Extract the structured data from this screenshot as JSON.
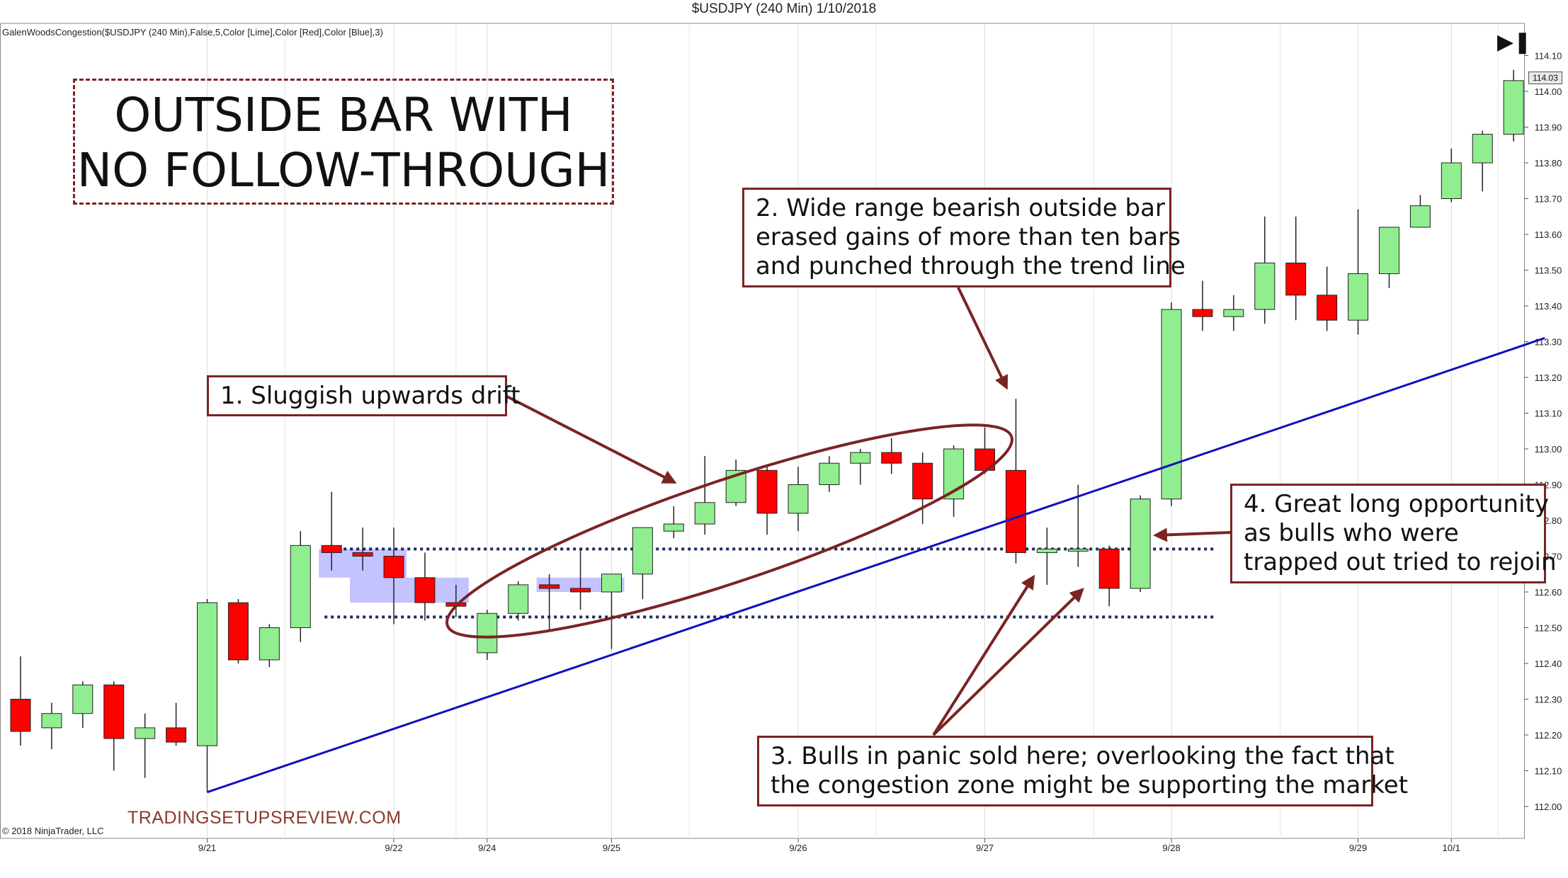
{
  "header": {
    "title": "$USDJPY (240 Min)  1/10/2018"
  },
  "indicator_label": "GalenWoodsCongestion($USDJPY (240 Min),False,5,Color [Lime],Color [Red],Color [Blue],3)",
  "copyright": "© 2018 NinjaTrader, LLC",
  "watermark": "TRADINGSETUPSREVIEW.COM",
  "play_icon": "skip-to-end-icon",
  "last_price": "114.03",
  "title_lines": [
    "OUTSIDE BAR WITH",
    "NO FOLLOW-THROUGH"
  ],
  "annotations": [
    {
      "id": "a1",
      "lines": [
        "1. Sluggish upwards drift"
      ]
    },
    {
      "id": "a2",
      "lines": [
        "2. Wide range bearish outside bar",
        "erased gains of more than ten bars",
        "and punched through the trend line"
      ]
    },
    {
      "id": "a3",
      "lines": [
        "3. Bulls in panic sold here; overlooking the fact that",
        "the congestion zone might be supporting the market"
      ]
    },
    {
      "id": "a4",
      "lines": [
        "4. Great long opportunity",
        "as bulls who were",
        "trapped out tried to rejoin"
      ]
    }
  ],
  "colors": {
    "bull": "#90ee90",
    "bear": "#ff0000",
    "trendline": "#1010c0",
    "annotation": "#7a2424",
    "zone": "#7b7bff",
    "levels": "#1a2a5a"
  },
  "chart_data": {
    "type": "candlestick",
    "title": "$USDJPY (240 Min)  1/10/2018",
    "ylim": [
      111.95,
      114.15
    ],
    "y_ticks": [
      "112.00",
      "112.10",
      "112.20",
      "112.30",
      "112.40",
      "112.50",
      "112.60",
      "112.70",
      "112.80",
      "112.90",
      "113.00",
      "113.10",
      "113.20",
      "113.30",
      "113.40",
      "113.50",
      "113.60",
      "113.70",
      "113.80",
      "113.90",
      "114.00",
      "114.10"
    ],
    "x_ticks": [
      {
        "label": "9/21",
        "bar": 6
      },
      {
        "label": "9/22",
        "bar": 12
      },
      {
        "label": "9/24",
        "bar": 15
      },
      {
        "label": "9/25",
        "bar": 19
      },
      {
        "label": "9/26",
        "bar": 25
      },
      {
        "label": "9/27",
        "bar": 31
      },
      {
        "label": "9/28",
        "bar": 37
      },
      {
        "label": "9/29",
        "bar": 43
      },
      {
        "label": "10/1",
        "bar": 46
      }
    ],
    "candles": [
      {
        "o": 112.3,
        "h": 112.42,
        "l": 112.17,
        "c": 112.21
      },
      {
        "o": 112.22,
        "h": 112.29,
        "l": 112.16,
        "c": 112.26
      },
      {
        "o": 112.26,
        "h": 112.35,
        "l": 112.22,
        "c": 112.34
      },
      {
        "o": 112.34,
        "h": 112.35,
        "l": 112.1,
        "c": 112.19
      },
      {
        "o": 112.19,
        "h": 112.26,
        "l": 112.08,
        "c": 112.22
      },
      {
        "o": 112.22,
        "h": 112.29,
        "l": 112.17,
        "c": 112.18
      },
      {
        "o": 112.17,
        "h": 112.58,
        "l": 112.04,
        "c": 112.57
      },
      {
        "o": 112.57,
        "h": 112.58,
        "l": 112.4,
        "c": 112.41
      },
      {
        "o": 112.41,
        "h": 112.51,
        "l": 112.39,
        "c": 112.5
      },
      {
        "o": 112.5,
        "h": 112.77,
        "l": 112.46,
        "c": 112.73
      },
      {
        "o": 112.73,
        "h": 112.88,
        "l": 112.66,
        "c": 112.71
      },
      {
        "o": 112.71,
        "h": 112.78,
        "l": 112.66,
        "c": 112.7
      },
      {
        "o": 112.7,
        "h": 112.78,
        "l": 112.51,
        "c": 112.64
      },
      {
        "o": 112.64,
        "h": 112.71,
        "l": 112.52,
        "c": 112.57
      },
      {
        "o": 112.57,
        "h": 112.62,
        "l": 112.53,
        "c": 112.56
      },
      {
        "o": 112.43,
        "h": 112.55,
        "l": 112.41,
        "c": 112.54
      },
      {
        "o": 112.54,
        "h": 112.63,
        "l": 112.52,
        "c": 112.62
      },
      {
        "o": 112.62,
        "h": 112.65,
        "l": 112.49,
        "c": 112.61
      },
      {
        "o": 112.61,
        "h": 112.72,
        "l": 112.55,
        "c": 112.6
      },
      {
        "o": 112.6,
        "h": 112.63,
        "l": 112.44,
        "c": 112.65
      },
      {
        "o": 112.65,
        "h": 112.78,
        "l": 112.58,
        "c": 112.78
      },
      {
        "o": 112.77,
        "h": 112.84,
        "l": 112.75,
        "c": 112.79
      },
      {
        "o": 112.79,
        "h": 112.98,
        "l": 112.76,
        "c": 112.85
      },
      {
        "o": 112.85,
        "h": 112.97,
        "l": 112.84,
        "c": 112.94
      },
      {
        "o": 112.94,
        "h": 112.95,
        "l": 112.76,
        "c": 112.82
      },
      {
        "o": 112.82,
        "h": 112.95,
        "l": 112.77,
        "c": 112.9
      },
      {
        "o": 112.9,
        "h": 112.98,
        "l": 112.88,
        "c": 112.96
      },
      {
        "o": 112.96,
        "h": 113.0,
        "l": 112.9,
        "c": 112.99
      },
      {
        "o": 112.99,
        "h": 113.03,
        "l": 112.93,
        "c": 112.96
      },
      {
        "o": 112.96,
        "h": 112.99,
        "l": 112.79,
        "c": 112.86
      },
      {
        "o": 112.86,
        "h": 113.01,
        "l": 112.81,
        "c": 113.0
      },
      {
        "o": 113.0,
        "h": 113.06,
        "l": 112.93,
        "c": 112.94
      },
      {
        "o": 112.94,
        "h": 113.14,
        "l": 112.68,
        "c": 112.71
      },
      {
        "o": 112.71,
        "h": 112.78,
        "l": 112.62,
        "c": 112.72
      },
      {
        "o": 112.72,
        "h": 112.9,
        "l": 112.67,
        "c": 112.72
      },
      {
        "o": 112.72,
        "h": 112.73,
        "l": 112.56,
        "c": 112.61
      },
      {
        "o": 112.61,
        "h": 112.87,
        "l": 112.6,
        "c": 112.86
      },
      {
        "o": 112.86,
        "h": 113.41,
        "l": 112.84,
        "c": 113.39
      },
      {
        "o": 113.39,
        "h": 113.47,
        "l": 113.33,
        "c": 113.37
      },
      {
        "o": 113.37,
        "h": 113.43,
        "l": 113.33,
        "c": 113.39
      },
      {
        "o": 113.39,
        "h": 113.65,
        "l": 113.35,
        "c": 113.52
      },
      {
        "o": 113.52,
        "h": 113.65,
        "l": 113.36,
        "c": 113.43
      },
      {
        "o": 113.43,
        "h": 113.51,
        "l": 113.33,
        "c": 113.36
      },
      {
        "o": 113.36,
        "h": 113.67,
        "l": 113.32,
        "c": 113.49
      },
      {
        "o": 113.49,
        "h": 113.62,
        "l": 113.45,
        "c": 113.62
      },
      {
        "o": 113.62,
        "h": 113.71,
        "l": 113.62,
        "c": 113.68
      },
      {
        "o": 113.7,
        "h": 113.84,
        "l": 113.69,
        "c": 113.8
      },
      {
        "o": 113.8,
        "h": 113.89,
        "l": 113.72,
        "c": 113.88
      },
      {
        "o": 113.88,
        "h": 114.06,
        "l": 113.86,
        "c": 114.03
      }
    ],
    "congestion_zones": [
      {
        "from_bar": 10,
        "to_bar": 12,
        "low": 112.64,
        "high": 112.72
      },
      {
        "from_bar": 11,
        "to_bar": 14,
        "low": 112.57,
        "high": 112.64
      },
      {
        "from_bar": 17,
        "to_bar": 19,
        "low": 112.6,
        "high": 112.64
      }
    ],
    "horizontal_levels": [
      {
        "value": 112.72,
        "from_bar": 10,
        "to_bar": 38
      },
      {
        "value": 112.53,
        "from_bar": 10,
        "to_bar": 38
      }
    ],
    "trendline": {
      "from": {
        "bar": 6,
        "value": 112.04
      },
      "to": {
        "bar": 49,
        "value": 113.31
      }
    }
  }
}
